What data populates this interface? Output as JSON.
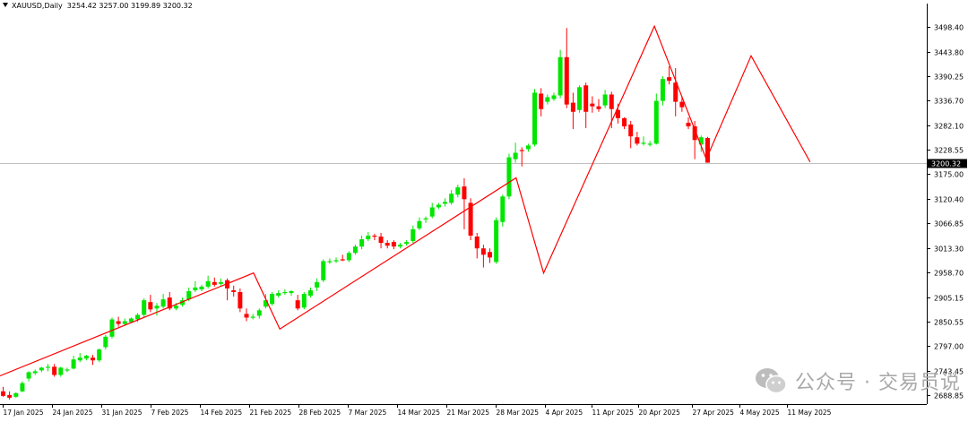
{
  "header": {
    "symbol": "XAUUSD,Daily",
    "ohlc": "3254.42 3257.00 3199.89 3200.32"
  },
  "watermark": {
    "text": "公众号 · 交易员说"
  },
  "colors": {
    "bull": "#00e600",
    "bear": "#ff0000",
    "zigzag": "#ff0000",
    "axis": "#000000",
    "price_line": "#c0c0c0",
    "price_tag_bg": "#000000",
    "price_tag_text": "#ffffff",
    "watermark": "#a9a9a9"
  },
  "chart_data": {
    "type": "candlestick",
    "symbol": "XAUUSD",
    "timeframe": "Daily",
    "ylim": [
      2670,
      3530
    ],
    "y_ticks": [
      "2688.85",
      "2743.45",
      "2797.00",
      "2850.55",
      "2905.15",
      "2958.70",
      "3013.30",
      "3066.85",
      "3120.40",
      "3175.00",
      "3228.55",
      "3282.10",
      "3336.70",
      "3390.25",
      "3443.80",
      "3498.40"
    ],
    "x_tick_labels": [
      "17 Jan 2025",
      "24 Jan 2025",
      "31 Jan 2025",
      "7 Feb 2025",
      "14 Feb 2025",
      "21 Feb 2025",
      "28 Feb 2025",
      "7 Mar 2025",
      "14 Mar 2025",
      "21 Mar 2025",
      "28 Mar 2025",
      "4 Apr 2025",
      "11 Apr 2025",
      "20 Apr 2025",
      "27 Apr 2025",
      "4 May 2025",
      "11 May 2025"
    ],
    "current_price": "3200.32",
    "candles": [
      {
        "o": 2698,
        "h": 2708,
        "c": 2688,
        "l": 2686
      },
      {
        "o": 2690,
        "h": 2698,
        "c": 2684,
        "l": 2680
      },
      {
        "o": 2686,
        "h": 2696,
        "c": 2694,
        "l": 2684
      },
      {
        "o": 2698,
        "h": 2720,
        "c": 2716,
        "l": 2696
      },
      {
        "o": 2726,
        "h": 2742,
        "c": 2740,
        "l": 2720
      },
      {
        "o": 2738,
        "h": 2746,
        "c": 2742,
        "l": 2734
      },
      {
        "o": 2744,
        "h": 2752,
        "c": 2750,
        "l": 2740
      },
      {
        "o": 2750,
        "h": 2758,
        "c": 2752,
        "l": 2742
      },
      {
        "o": 2752,
        "h": 2758,
        "c": 2734,
        "l": 2730
      },
      {
        "o": 2734,
        "h": 2752,
        "c": 2750,
        "l": 2730
      },
      {
        "o": 2745,
        "h": 2750,
        "c": 2746,
        "l": 2740
      },
      {
        "o": 2748,
        "h": 2776,
        "c": 2768,
        "l": 2746
      },
      {
        "o": 2766,
        "h": 2782,
        "c": 2772,
        "l": 2762
      },
      {
        "o": 2770,
        "h": 2778,
        "c": 2776,
        "l": 2766
      },
      {
        "o": 2772,
        "h": 2778,
        "c": 2766,
        "l": 2756
      },
      {
        "o": 2766,
        "h": 2792,
        "c": 2790,
        "l": 2762
      },
      {
        "o": 2795,
        "h": 2822,
        "c": 2818,
        "l": 2790
      },
      {
        "o": 2818,
        "h": 2860,
        "c": 2856,
        "l": 2814
      },
      {
        "o": 2852,
        "h": 2862,
        "c": 2846,
        "l": 2840
      },
      {
        "o": 2846,
        "h": 2858,
        "c": 2852,
        "l": 2842
      },
      {
        "o": 2850,
        "h": 2860,
        "c": 2858,
        "l": 2848
      },
      {
        "o": 2856,
        "h": 2870,
        "c": 2866,
        "l": 2850
      },
      {
        "o": 2866,
        "h": 2902,
        "c": 2898,
        "l": 2860
      },
      {
        "o": 2894,
        "h": 2910,
        "c": 2878,
        "l": 2872
      },
      {
        "o": 2880,
        "h": 2892,
        "c": 2886,
        "l": 2864
      },
      {
        "o": 2884,
        "h": 2912,
        "c": 2900,
        "l": 2880
      },
      {
        "o": 2904,
        "h": 2916,
        "c": 2880,
        "l": 2876
      },
      {
        "o": 2880,
        "h": 2892,
        "c": 2886,
        "l": 2876
      },
      {
        "o": 2888,
        "h": 2904,
        "c": 2898,
        "l": 2884
      },
      {
        "o": 2900,
        "h": 2926,
        "c": 2918,
        "l": 2896
      },
      {
        "o": 2920,
        "h": 2940,
        "c": 2926,
        "l": 2916
      },
      {
        "o": 2922,
        "h": 2932,
        "c": 2928,
        "l": 2918
      },
      {
        "o": 2928,
        "h": 2952,
        "c": 2940,
        "l": 2924
      },
      {
        "o": 2938,
        "h": 2948,
        "c": 2932,
        "l": 2928
      },
      {
        "o": 2934,
        "h": 2946,
        "c": 2938,
        "l": 2930
      },
      {
        "o": 2942,
        "h": 2946,
        "c": 2924,
        "l": 2898
      },
      {
        "o": 2920,
        "h": 2930,
        "c": 2916,
        "l": 2906
      },
      {
        "o": 2916,
        "h": 2924,
        "c": 2880,
        "l": 2872
      },
      {
        "o": 2868,
        "h": 2880,
        "c": 2860,
        "l": 2852
      },
      {
        "o": 2860,
        "h": 2868,
        "c": 2862,
        "l": 2856
      },
      {
        "o": 2864,
        "h": 2880,
        "c": 2876,
        "l": 2858
      },
      {
        "o": 2884,
        "h": 2912,
        "c": 2898,
        "l": 2880
      },
      {
        "o": 2890,
        "h": 2916,
        "c": 2912,
        "l": 2886
      },
      {
        "o": 2908,
        "h": 2920,
        "c": 2914,
        "l": 2904
      },
      {
        "o": 2914,
        "h": 2922,
        "c": 2916,
        "l": 2910
      },
      {
        "o": 2914,
        "h": 2920,
        "c": 2918,
        "l": 2908
      },
      {
        "o": 2898,
        "h": 2910,
        "c": 2880,
        "l": 2876
      },
      {
        "o": 2882,
        "h": 2916,
        "c": 2912,
        "l": 2878
      },
      {
        "o": 2908,
        "h": 2926,
        "c": 2920,
        "l": 2904
      },
      {
        "o": 2926,
        "h": 2946,
        "c": 2938,
        "l": 2918
      },
      {
        "o": 2942,
        "h": 2988,
        "c": 2984,
        "l": 2938
      },
      {
        "o": 2984,
        "h": 2990,
        "c": 2984,
        "l": 2978
      },
      {
        "o": 2984,
        "h": 2992,
        "c": 2986,
        "l": 2980
      },
      {
        "o": 2988,
        "h": 2998,
        "c": 2986,
        "l": 2984
      },
      {
        "o": 2986,
        "h": 3006,
        "c": 3002,
        "l": 2982
      },
      {
        "o": 3002,
        "h": 3020,
        "c": 3016,
        "l": 2998
      },
      {
        "o": 3016,
        "h": 3040,
        "c": 3032,
        "l": 3010
      },
      {
        "o": 3032,
        "h": 3048,
        "c": 3040,
        "l": 3028
      },
      {
        "o": 3040,
        "h": 3044,
        "c": 3038,
        "l": 3030
      },
      {
        "o": 3038,
        "h": 3046,
        "c": 3024,
        "l": 3012
      },
      {
        "o": 3024,
        "h": 3030,
        "c": 3018,
        "l": 3012
      },
      {
        "o": 3026,
        "h": 3030,
        "c": 3016,
        "l": 3010
      },
      {
        "o": 3016,
        "h": 3024,
        "c": 3020,
        "l": 3012
      },
      {
        "o": 3022,
        "h": 3030,
        "c": 3026,
        "l": 3018
      },
      {
        "o": 3028,
        "h": 3062,
        "c": 3054,
        "l": 3024
      },
      {
        "o": 3056,
        "h": 3080,
        "c": 3072,
        "l": 3052
      },
      {
        "o": 3076,
        "h": 3082,
        "c": 3078,
        "l": 3068
      },
      {
        "o": 3082,
        "h": 3112,
        "c": 3102,
        "l": 3078
      },
      {
        "o": 3102,
        "h": 3112,
        "c": 3108,
        "l": 3098
      },
      {
        "o": 3110,
        "h": 3122,
        "c": 3114,
        "l": 3104
      },
      {
        "o": 3112,
        "h": 3140,
        "c": 3132,
        "l": 3108
      },
      {
        "o": 3130,
        "h": 3152,
        "c": 3146,
        "l": 3124
      },
      {
        "o": 3148,
        "h": 3166,
        "c": 3120,
        "l": 3054
      },
      {
        "o": 3112,
        "h": 3122,
        "c": 3040,
        "l": 3030
      },
      {
        "o": 3038,
        "h": 3046,
        "c": 3012,
        "l": 2990
      },
      {
        "o": 3012,
        "h": 3020,
        "c": 2998,
        "l": 2970
      },
      {
        "o": 3004,
        "h": 3012,
        "c": 2992,
        "l": 2980
      },
      {
        "o": 2982,
        "h": 3080,
        "c": 3074,
        "l": 2978
      },
      {
        "o": 3070,
        "h": 3130,
        "c": 3126,
        "l": 3060
      },
      {
        "o": 3126,
        "h": 3220,
        "c": 3212,
        "l": 3120
      },
      {
        "o": 3208,
        "h": 3244,
        "c": 3222,
        "l": 3200
      },
      {
        "o": 3228,
        "h": 3234,
        "c": 3226,
        "l": 3192
      },
      {
        "o": 3230,
        "h": 3242,
        "c": 3238,
        "l": 3224
      },
      {
        "o": 3240,
        "h": 3362,
        "c": 3354,
        "l": 3236
      },
      {
        "o": 3352,
        "h": 3364,
        "c": 3318,
        "l": 3302
      },
      {
        "o": 3334,
        "h": 3350,
        "c": 3344,
        "l": 3328
      },
      {
        "o": 3340,
        "h": 3354,
        "c": 3348,
        "l": 3336
      },
      {
        "o": 3348,
        "h": 3448,
        "c": 3432,
        "l": 3342
      },
      {
        "o": 3432,
        "h": 3496,
        "c": 3328,
        "l": 3320
      },
      {
        "o": 3332,
        "h": 3354,
        "c": 3312,
        "l": 3274
      },
      {
        "o": 3316,
        "h": 3370,
        "c": 3366,
        "l": 3310
      },
      {
        "o": 3370,
        "h": 3376,
        "c": 3312,
        "l": 3276
      },
      {
        "o": 3330,
        "h": 3346,
        "c": 3324,
        "l": 3310
      },
      {
        "o": 3324,
        "h": 3340,
        "c": 3318,
        "l": 3312
      },
      {
        "o": 3326,
        "h": 3360,
        "c": 3350,
        "l": 3320
      },
      {
        "o": 3350,
        "h": 3356,
        "c": 3318,
        "l": 3276
      },
      {
        "o": 3316,
        "h": 3330,
        "c": 3298,
        "l": 3286
      },
      {
        "o": 3298,
        "h": 3300,
        "c": 3280,
        "l": 3274
      },
      {
        "o": 3284,
        "h": 3292,
        "c": 3258,
        "l": 3232
      },
      {
        "o": 3256,
        "h": 3268,
        "c": 3242,
        "l": 3238
      },
      {
        "o": 3242,
        "h": 3258,
        "c": 3244,
        "l": 3238
      },
      {
        "o": 3240,
        "h": 3248,
        "c": 3242,
        "l": 3236
      },
      {
        "o": 3242,
        "h": 3352,
        "c": 3336,
        "l": 3240
      },
      {
        "o": 3336,
        "h": 3390,
        "c": 3384,
        "l": 3326
      },
      {
        "o": 3388,
        "h": 3412,
        "c": 3380,
        "l": 3372
      },
      {
        "o": 3376,
        "h": 3408,
        "c": 3334,
        "l": 3302
      },
      {
        "o": 3334,
        "h": 3346,
        "c": 3322,
        "l": 3312
      },
      {
        "o": 3288,
        "h": 3300,
        "c": 3280,
        "l": 3274
      },
      {
        "o": 3280,
        "h": 3292,
        "c": 3250,
        "l": 3208
      },
      {
        "o": 3240,
        "h": 3260,
        "c": 3256,
        "l": 3224
      },
      {
        "o": 3254.42,
        "h": 3257.0,
        "c": 3200.32,
        "l": 3199.89
      }
    ],
    "zigzag": [
      {
        "i": -2.6,
        "p": 2720
      },
      {
        "i": 39.1,
        "p": 2958
      },
      {
        "i": 43.2,
        "p": 2835
      },
      {
        "i": 80.1,
        "p": 3167
      },
      {
        "i": 84.4,
        "p": 2958
      },
      {
        "i": 101.7,
        "p": 3500
      },
      {
        "i": 109.8,
        "p": 3208
      },
      {
        "i": 116.8,
        "p": 3435
      },
      {
        "i": 126.0,
        "p": 3202
      }
    ]
  }
}
